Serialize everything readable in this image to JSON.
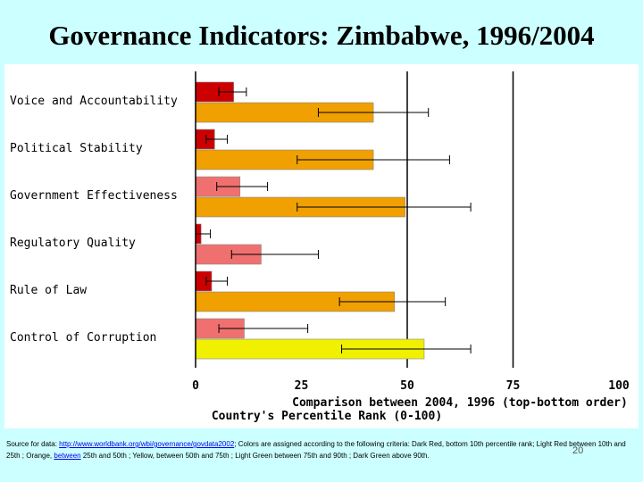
{
  "slide": {
    "title": "Governance Indicators: Zimbabwe, 1996/2004",
    "number": "20"
  },
  "footer": {
    "source_prefix": "Source for data: ",
    "link": "http://www.worldbank.org/wbi/governance/govdata2002",
    "criteria": "; Colors are assigned according to the following criteria: Dark Red, bottom 10th percentile rank; Light Red between 10th and 25th ; Orange, ",
    "between_link": "between",
    "criteria_rest": " 25th and 50th ; Yellow, between 50th and 75th ; Light Green between 75th and 90th ; Dark Green above 90th."
  },
  "colors": {
    "dark_red": "#cc0000",
    "light_red": "#f07070",
    "orange": "#f0a000",
    "yellow": "#f0f000",
    "background": "#ccffff"
  },
  "chart_data": {
    "type": "bar",
    "orientation": "horizontal",
    "categories": [
      "Voice and Accountability",
      "Political Stability",
      "Government Effectiveness",
      "Regulatory Quality",
      "Rule of Law",
      "Control of Corruption"
    ],
    "series": [
      {
        "values": [
          9,
          4.5,
          10.5,
          1.3,
          3.8,
          11.5
        ],
        "errors": [
          [
            5.5,
            12
          ],
          [
            2.5,
            7.5
          ],
          [
            5,
            17
          ],
          [
            0,
            3.5
          ],
          [
            2.5,
            7.5
          ],
          [
            5.5,
            26.5
          ]
        ],
        "colors": [
          "#cc0000",
          "#cc0000",
          "#f07070",
          "#cc0000",
          "#cc0000",
          "#f07070"
        ]
      },
      {
        "values": [
          42,
          42,
          49.5,
          15.5,
          47,
          54
        ],
        "errors": [
          [
            29,
            55
          ],
          [
            24,
            60
          ],
          [
            24,
            65
          ],
          [
            8.5,
            29
          ],
          [
            34,
            59
          ],
          [
            34.5,
            65
          ]
        ],
        "colors": [
          "#f0a000",
          "#f0a000",
          "#f0a000",
          "#f07070",
          "#f0a000",
          "#f0f000"
        ]
      }
    ],
    "xlim": [
      0,
      100
    ],
    "xticks": [
      "0",
      "25",
      "50",
      "75",
      "100"
    ],
    "reference_lines": [
      50,
      75
    ],
    "xlabel_line1": "Comparison between 2004, 1996 (top-bottom order)",
    "xlabel_line2": "Country's Percentile Rank (0-100)"
  }
}
